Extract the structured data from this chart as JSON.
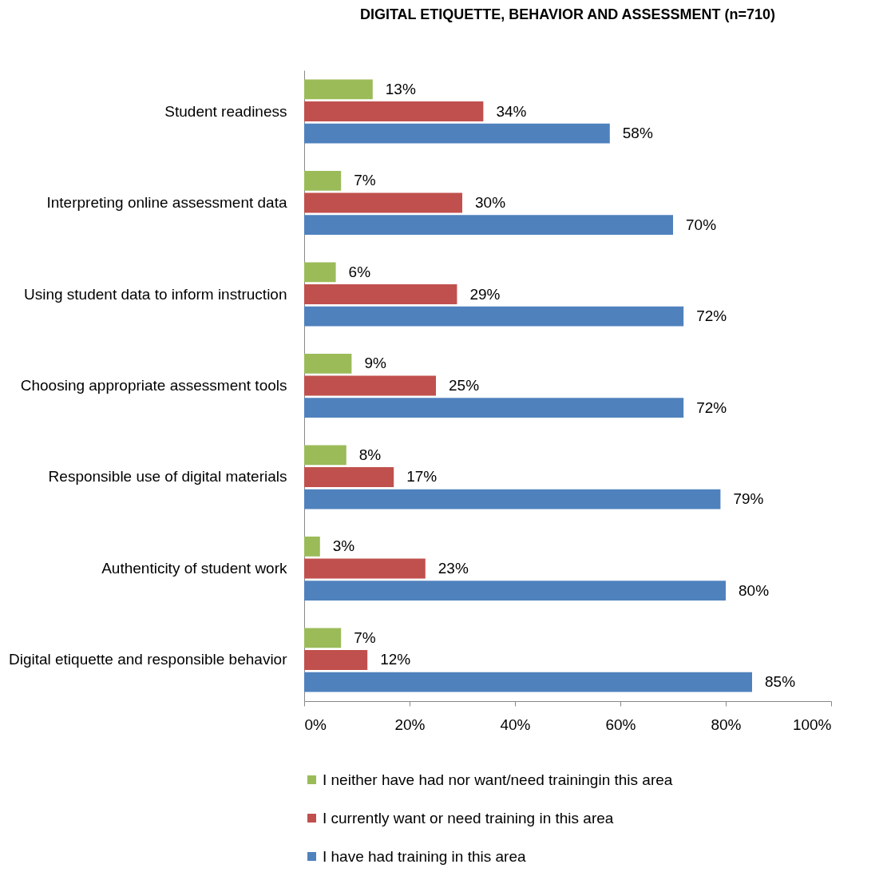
{
  "chart_data": {
    "type": "bar",
    "orientation": "horizontal",
    "title": "DIGITAL ETIQUETTE, BEHAVIOR AND ASSESSMENT (n=710)",
    "categories": [
      "Student readiness",
      "Interpreting online assessment data",
      "Using student data to inform instruction",
      "Choosing appropriate assessment tools",
      "Responsible use of digital materials",
      "Authenticity of student work",
      "Digital etiquette and responsible behavior"
    ],
    "series": [
      {
        "name": "I neither have had nor want/need trainingin this area",
        "color": "#9bbb59",
        "values": [
          13,
          7,
          6,
          9,
          8,
          3,
          7
        ],
        "value_labels": [
          "13%",
          "7%",
          "6%",
          "9%",
          "8%",
          "3%",
          "7%"
        ]
      },
      {
        "name": "I currently want or need training in this area",
        "color": "#c0504d",
        "values": [
          34,
          30,
          29,
          25,
          17,
          23,
          12
        ],
        "value_labels": [
          "34%",
          "30%",
          "29%",
          "25%",
          "17%",
          "23%",
          "12%"
        ]
      },
      {
        "name": "I have had training in this area",
        "color": "#4f81bd",
        "values": [
          58,
          70,
          72,
          72,
          79,
          80,
          85
        ],
        "value_labels": [
          "58%",
          "70%",
          "72%",
          "72%",
          "79%",
          "80%",
          "85%"
        ]
      }
    ],
    "xlim": [
      0,
      100
    ],
    "xticks": [
      {
        "value": 0,
        "label": "0%"
      },
      {
        "value": 20,
        "label": "20%"
      },
      {
        "value": 40,
        "label": "40%"
      },
      {
        "value": 60,
        "label": "60%"
      },
      {
        "value": 80,
        "label": "80%"
      },
      {
        "value": 100,
        "label": "100%"
      }
    ],
    "legend": "bottom"
  }
}
